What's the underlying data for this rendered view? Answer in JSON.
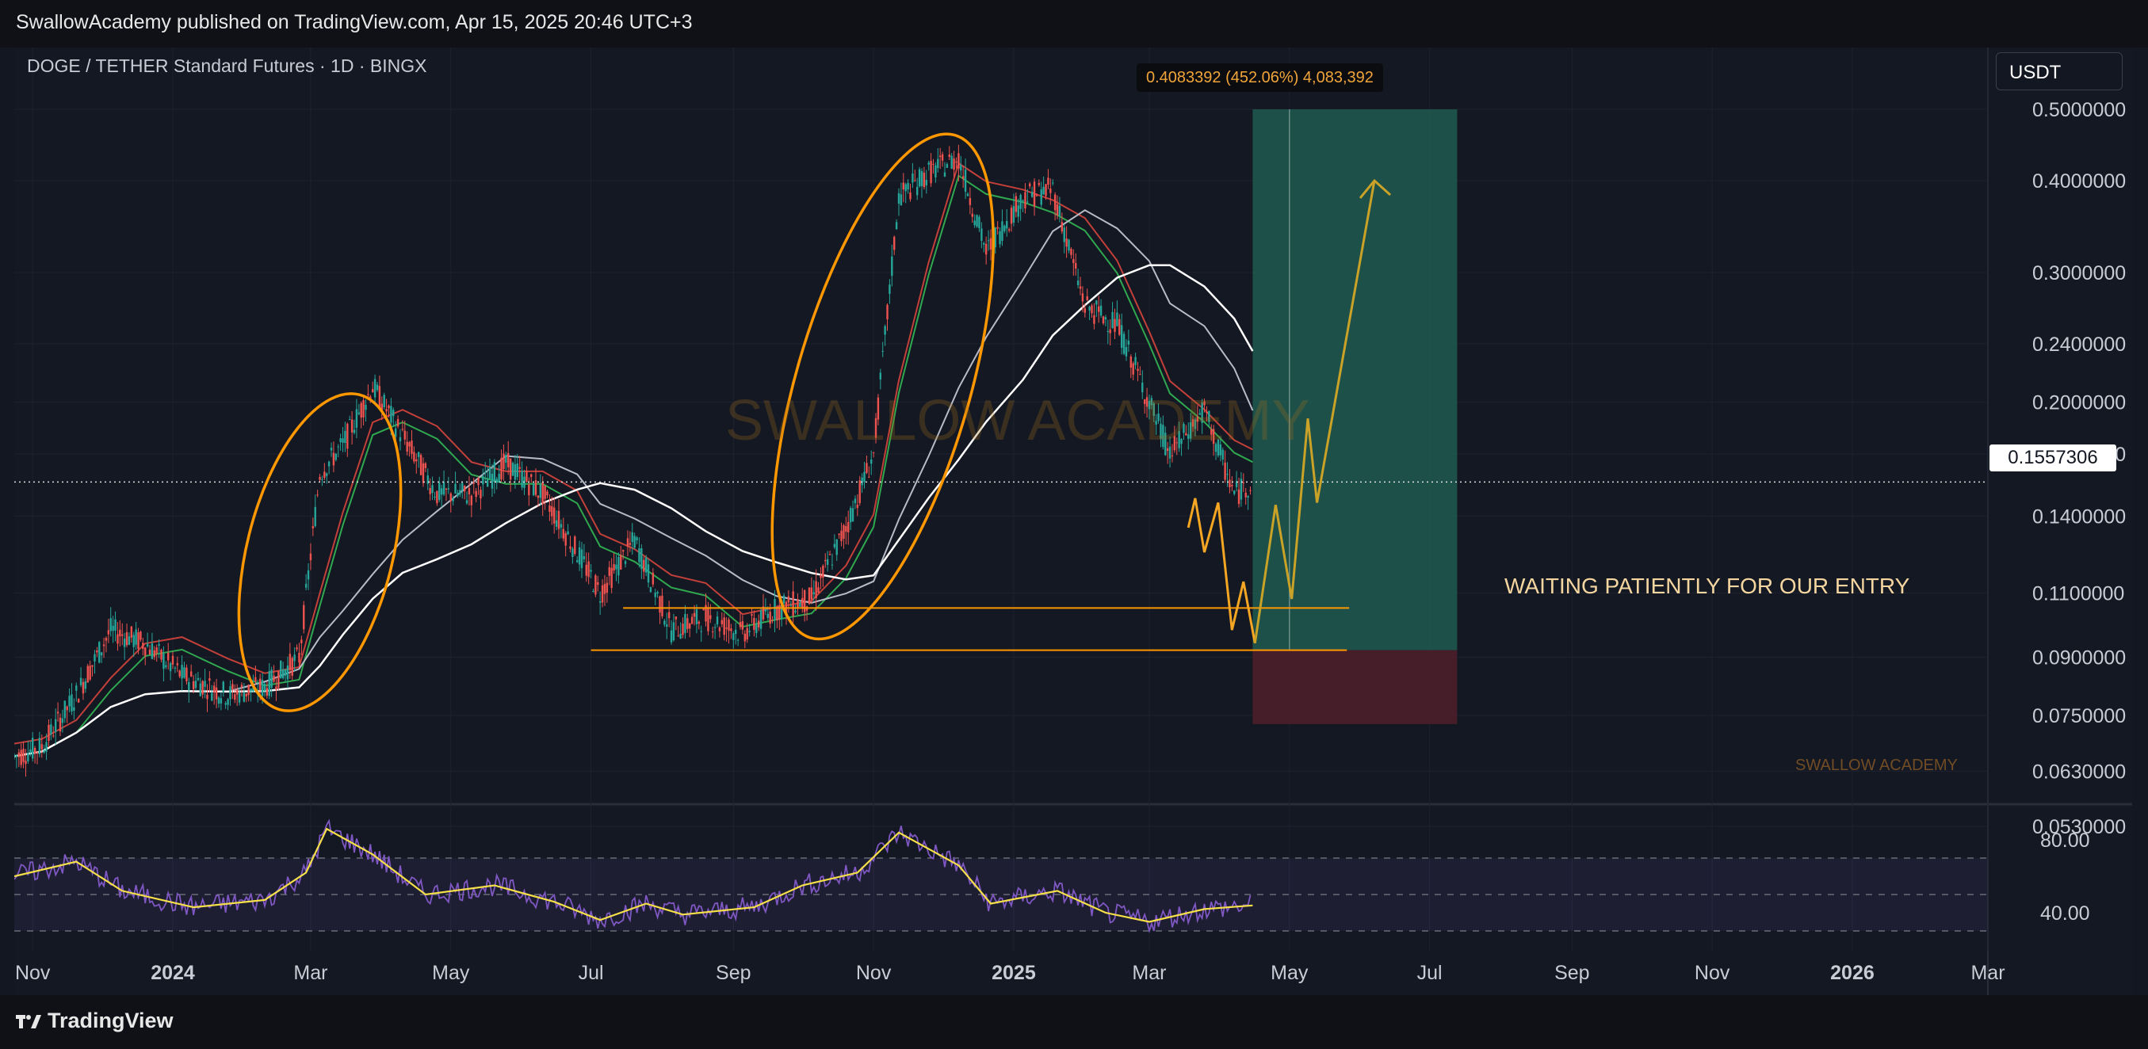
{
  "header": {
    "published_line": "SwallowAcademy published on TradingView.com, Apr 15, 2025 20:46 UTC+3"
  },
  "symbol": {
    "title": "DOGE / TETHER Standard Futures · 1D · BINGX"
  },
  "currency_button": "USDT",
  "measure_label": "0.4083392 (452.06%) 4,083,392",
  "last_price": "0.1557306",
  "annotation_text": "WAITING PATIENTLY FOR OUR ENTRY",
  "watermark_main": "SWALLOW ACADEMY",
  "watermark_small": "SWALLOW ACADEMY",
  "footer": {
    "brand": "TradingView"
  },
  "colors": {
    "background": "#131722",
    "up_candle": "#26a69a",
    "down_candle": "#ef5350",
    "annotation_orange": "#ff9800",
    "target_zone": "#1e5a50",
    "stop_zone": "#4a1f2a",
    "rsi_line": "#7e57c2",
    "rsi_ma_line": "#f5e04a"
  },
  "chart_data": [
    {
      "type": "candlestick",
      "title": "DOGE / TETHER Standard Futures · 1D · BINGX",
      "ylim": [
        0.053,
        0.5
      ],
      "y_scale": "log",
      "y_ticks": [
        "0.5000000",
        "0.4000000",
        "0.3000000",
        "0.2400000",
        "0.2000000",
        "0.1700000",
        "0.1400000",
        "0.1100000",
        "0.0900000",
        "0.0750000",
        "0.0630000",
        "0.0530000"
      ],
      "x_ticks": [
        "Nov",
        "2024",
        "Mar",
        "May",
        "Jul",
        "Sep",
        "Nov",
        "2025",
        "Mar",
        "May",
        "Jul",
        "Sep",
        "Nov",
        "2026",
        "Mar"
      ],
      "x_range": [
        "2023-10-24",
        "2026-03-01"
      ],
      "approx_close_path": [
        {
          "x": "2023-10-24",
          "y": 0.066
        },
        {
          "x": "2023-11-05",
          "y": 0.068
        },
        {
          "x": "2023-11-20",
          "y": 0.08
        },
        {
          "x": "2023-12-05",
          "y": 0.098
        },
        {
          "x": "2023-12-20",
          "y": 0.094
        },
        {
          "x": "2024-01-05",
          "y": 0.085
        },
        {
          "x": "2024-01-25",
          "y": 0.08
        },
        {
          "x": "2024-02-10",
          "y": 0.082
        },
        {
          "x": "2024-02-25",
          "y": 0.09
        },
        {
          "x": "2024-03-05",
          "y": 0.16
        },
        {
          "x": "2024-03-15",
          "y": 0.175
        },
        {
          "x": "2024-03-28",
          "y": 0.21
        },
        {
          "x": "2024-04-10",
          "y": 0.18
        },
        {
          "x": "2024-04-25",
          "y": 0.15
        },
        {
          "x": "2024-05-10",
          "y": 0.15
        },
        {
          "x": "2024-05-25",
          "y": 0.165
        },
        {
          "x": "2024-06-10",
          "y": 0.15
        },
        {
          "x": "2024-06-25",
          "y": 0.125
        },
        {
          "x": "2024-07-05",
          "y": 0.11
        },
        {
          "x": "2024-07-20",
          "y": 0.13
        },
        {
          "x": "2024-08-05",
          "y": 0.098
        },
        {
          "x": "2024-08-20",
          "y": 0.102
        },
        {
          "x": "2024-09-05",
          "y": 0.097
        },
        {
          "x": "2024-09-20",
          "y": 0.105
        },
        {
          "x": "2024-10-05",
          "y": 0.108
        },
        {
          "x": "2024-10-20",
          "y": 0.135
        },
        {
          "x": "2024-11-01",
          "y": 0.17
        },
        {
          "x": "2024-11-12",
          "y": 0.38
        },
        {
          "x": "2024-11-25",
          "y": 0.41
        },
        {
          "x": "2024-12-08",
          "y": 0.43
        },
        {
          "x": "2024-12-20",
          "y": 0.32
        },
        {
          "x": "2025-01-05",
          "y": 0.38
        },
        {
          "x": "2025-01-18",
          "y": 0.39
        },
        {
          "x": "2025-02-01",
          "y": 0.27
        },
        {
          "x": "2025-02-15",
          "y": 0.255
        },
        {
          "x": "2025-03-01",
          "y": 0.2
        },
        {
          "x": "2025-03-10",
          "y": 0.17
        },
        {
          "x": "2025-03-25",
          "y": 0.195
        },
        {
          "x": "2025-04-07",
          "y": 0.15
        },
        {
          "x": "2025-04-15",
          "y": 0.1557306
        }
      ],
      "horizontal_levels": [
        0.105,
        0.092
      ],
      "long_position": {
        "entry": 0.092,
        "target": 0.5,
        "stop": 0.073,
        "start": "2025-04-15",
        "end": "2025-07-13"
      },
      "projected_path": [
        {
          "x": "2025-03-18",
          "y": 0.135
        },
        {
          "x": "2025-03-21",
          "y": 0.148
        },
        {
          "x": "2025-03-25",
          "y": 0.125
        },
        {
          "x": "2025-03-31",
          "y": 0.146
        },
        {
          "x": "2025-04-06",
          "y": 0.098
        },
        {
          "x": "2025-04-11",
          "y": 0.114
        },
        {
          "x": "2025-04-16",
          "y": 0.094
        },
        {
          "x": "2025-04-25",
          "y": 0.145
        },
        {
          "x": "2025-05-02",
          "y": 0.108
        },
        {
          "x": "2025-05-09",
          "y": 0.19
        },
        {
          "x": "2025-05-13",
          "y": 0.146
        },
        {
          "x": "2025-06-07",
          "y": 0.4
        }
      ]
    },
    {
      "type": "line",
      "title": "RSI",
      "y_ticks": [
        "80.00",
        "40.00"
      ],
      "band": [
        70,
        30
      ],
      "midline": 50,
      "approx_rsi": [
        {
          "x": "2023-10-24",
          "y": 60
        },
        {
          "x": "2023-11-20",
          "y": 68
        },
        {
          "x": "2023-12-10",
          "y": 52
        },
        {
          "x": "2024-01-10",
          "y": 43
        },
        {
          "x": "2024-02-10",
          "y": 47
        },
        {
          "x": "2024-02-28",
          "y": 62
        },
        {
          "x": "2024-03-08",
          "y": 86
        },
        {
          "x": "2024-03-28",
          "y": 72
        },
        {
          "x": "2024-04-20",
          "y": 50
        },
        {
          "x": "2024-05-20",
          "y": 55
        },
        {
          "x": "2024-06-15",
          "y": 46
        },
        {
          "x": "2024-07-05",
          "y": 36
        },
        {
          "x": "2024-07-25",
          "y": 45
        },
        {
          "x": "2024-08-10",
          "y": 39
        },
        {
          "x": "2024-09-10",
          "y": 43
        },
        {
          "x": "2024-10-01",
          "y": 55
        },
        {
          "x": "2024-10-25",
          "y": 62
        },
        {
          "x": "2024-11-12",
          "y": 84
        },
        {
          "x": "2024-12-08",
          "y": 66
        },
        {
          "x": "2024-12-22",
          "y": 45
        },
        {
          "x": "2025-01-20",
          "y": 52
        },
        {
          "x": "2025-02-10",
          "y": 40
        },
        {
          "x": "2025-03-01",
          "y": 35
        },
        {
          "x": "2025-03-25",
          "y": 42
        },
        {
          "x": "2025-04-15",
          "y": 44
        }
      ]
    }
  ]
}
